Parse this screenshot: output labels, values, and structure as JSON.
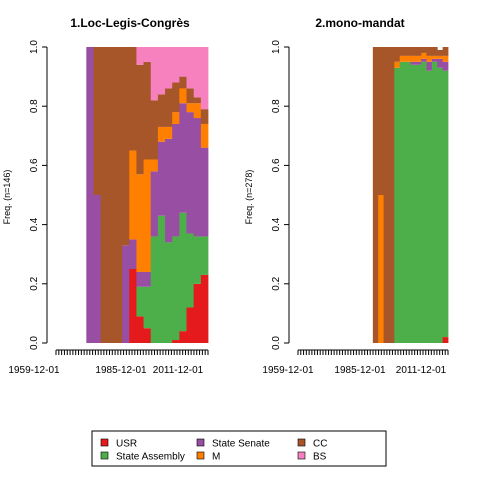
{
  "colors": {
    "USR": "#e41a1c",
    "State Assembly": "#4daf4a",
    "State Senate": "#984ea3",
    "M": "#ff7f00",
    "CC": "#a65628",
    "BS": "#f781bf"
  },
  "legend": {
    "items": [
      {
        "label": "USR",
        "color": "#e41a1c"
      },
      {
        "label": "State Assembly",
        "color": "#4daf4a"
      },
      {
        "label": "State Senate",
        "color": "#984ea3"
      },
      {
        "label": "M",
        "color": "#ff7f00"
      },
      {
        "label": "CC",
        "color": "#a65628"
      },
      {
        "label": "BS",
        "color": "#f781bf"
      }
    ]
  },
  "chart_data": [
    {
      "type": "area",
      "title": "1.Loc-Legis-Congrès",
      "ylabel": "Freq. (n=146)",
      "xlabel": "",
      "ylim": [
        0,
        1
      ],
      "yticks": [
        "0.0",
        "0.2",
        "0.4",
        "0.6",
        "0.8",
        "1.0"
      ],
      "xticks": [
        "1959-12-01",
        "1985-12-01",
        "2011-12-01"
      ],
      "stack_order": [
        "USR",
        "State Assembly",
        "State Senate",
        "M",
        "CC",
        "BS"
      ],
      "x": [
        "1961",
        "1964",
        "1967",
        "1970",
        "1973",
        "1976",
        "1979",
        "1982",
        "1985",
        "1988",
        "1991",
        "1994",
        "1997",
        "2000",
        "2003",
        "2006",
        "2009",
        "2012",
        "2015"
      ],
      "series": [
        {
          "name": "USR",
          "values": [
            0,
            0,
            0,
            0,
            0,
            0,
            0,
            0,
            0.25,
            0.09,
            0.05,
            0,
            0,
            0,
            0.01,
            0.04,
            0.12,
            0.2,
            0.23
          ]
        },
        {
          "name": "State Assembly",
          "values": [
            0,
            0,
            0,
            0,
            0,
            0,
            0,
            0,
            0,
            0.1,
            0.14,
            0.36,
            0.43,
            0.34,
            0.35,
            0.4,
            0.25,
            0.16,
            0.13
          ]
        },
        {
          "name": "State Senate",
          "values": [
            0,
            0,
            1,
            0.5,
            0,
            0,
            0,
            0.33,
            0.1,
            0.05,
            0.05,
            0.22,
            0.25,
            0.35,
            0.38,
            0.37,
            0.41,
            0.4,
            0.3
          ]
        },
        {
          "name": "M",
          "values": [
            0,
            0,
            0,
            0,
            0,
            0,
            0,
            0,
            0.3,
            0.33,
            0.38,
            0.04,
            0.05,
            0.04,
            0.04,
            0.05,
            0.03,
            0.05,
            0.08
          ]
        },
        {
          "name": "CC",
          "values": [
            0,
            0,
            0,
            0.5,
            1,
            1,
            1,
            0.67,
            0.35,
            0.37,
            0.33,
            0.2,
            0.11,
            0.13,
            0.1,
            0.04,
            0.05,
            0.02,
            0.05
          ]
        },
        {
          "name": "BS",
          "values": [
            0,
            0,
            0,
            0,
            0,
            0,
            0,
            0,
            0,
            0.06,
            0.05,
            0.18,
            0.16,
            0.14,
            0.12,
            0.1,
            0.14,
            0.17,
            0.21
          ]
        }
      ]
    },
    {
      "type": "area",
      "title": "2.mono-mandat",
      "ylabel": "Freq. (n=278)",
      "xlabel": "",
      "ylim": [
        0,
        1
      ],
      "yticks": [
        "0.0",
        "0.2",
        "0.4",
        "0.6",
        "0.8",
        "1.0"
      ],
      "xticks": [
        "1959-12-01",
        "1985-12-01",
        "2011-12-01"
      ],
      "stack_order": [
        "USR",
        "State Assembly",
        "State Senate",
        "M",
        "CC",
        "BS"
      ],
      "x": [
        "1961",
        "1964",
        "1967",
        "1970",
        "1973",
        "1976",
        "1979",
        "1982",
        "1985",
        "1988",
        "1991",
        "1994",
        "1997",
        "2000",
        "2003",
        "2006",
        "2009",
        "2012",
        "2015"
      ],
      "series": [
        {
          "name": "USR",
          "values": [
            0,
            0,
            0,
            0,
            0,
            0,
            0,
            0,
            0,
            0,
            0,
            0,
            0,
            0,
            0,
            0,
            0,
            0,
            0.02
          ]
        },
        {
          "name": "State Assembly",
          "values": [
            0,
            0,
            0,
            0,
            0,
            0,
            0,
            0,
            0,
            0.93,
            0.95,
            0.95,
            0.94,
            0.94,
            0.95,
            0.92,
            0.95,
            0.93,
            0.9
          ]
        },
        {
          "name": "State Senate",
          "values": [
            0,
            0,
            0,
            0,
            0,
            0,
            0,
            0,
            0,
            0,
            0,
            0,
            0.01,
            0.01,
            0.01,
            0.03,
            0.01,
            0.03,
            0.03
          ]
        },
        {
          "name": "M",
          "values": [
            0,
            0,
            0,
            0,
            0,
            0,
            0.5,
            0,
            0,
            0.02,
            0.02,
            0.02,
            0.02,
            0.02,
            0.02,
            0.02,
            0.01,
            0.01,
            0.02
          ]
        },
        {
          "name": "CC",
          "values": [
            0,
            0,
            0,
            0,
            0,
            1,
            0.5,
            1,
            1,
            0.05,
            0.03,
            0.03,
            0.03,
            0.03,
            0.02,
            0.03,
            0.03,
            0.02,
            0.03
          ]
        },
        {
          "name": "BS",
          "values": [
            0,
            0,
            0,
            0,
            0,
            0,
            0,
            0,
            0,
            0,
            0,
            0,
            0,
            0,
            0,
            0,
            0,
            0,
            0
          ]
        }
      ]
    }
  ]
}
